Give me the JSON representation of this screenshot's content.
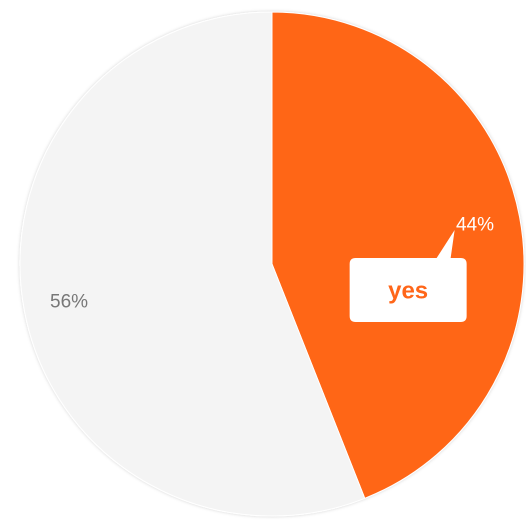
{
  "chart_data": {
    "type": "pie",
    "categories": [
      "yes",
      null
    ],
    "values": [
      44,
      56
    ],
    "value_labels": [
      "44%",
      "56%"
    ],
    "colors": [
      "#ff6619",
      "#f4f4f4"
    ],
    "label_colors": [
      "#ffffff",
      "#777777"
    ]
  }
}
